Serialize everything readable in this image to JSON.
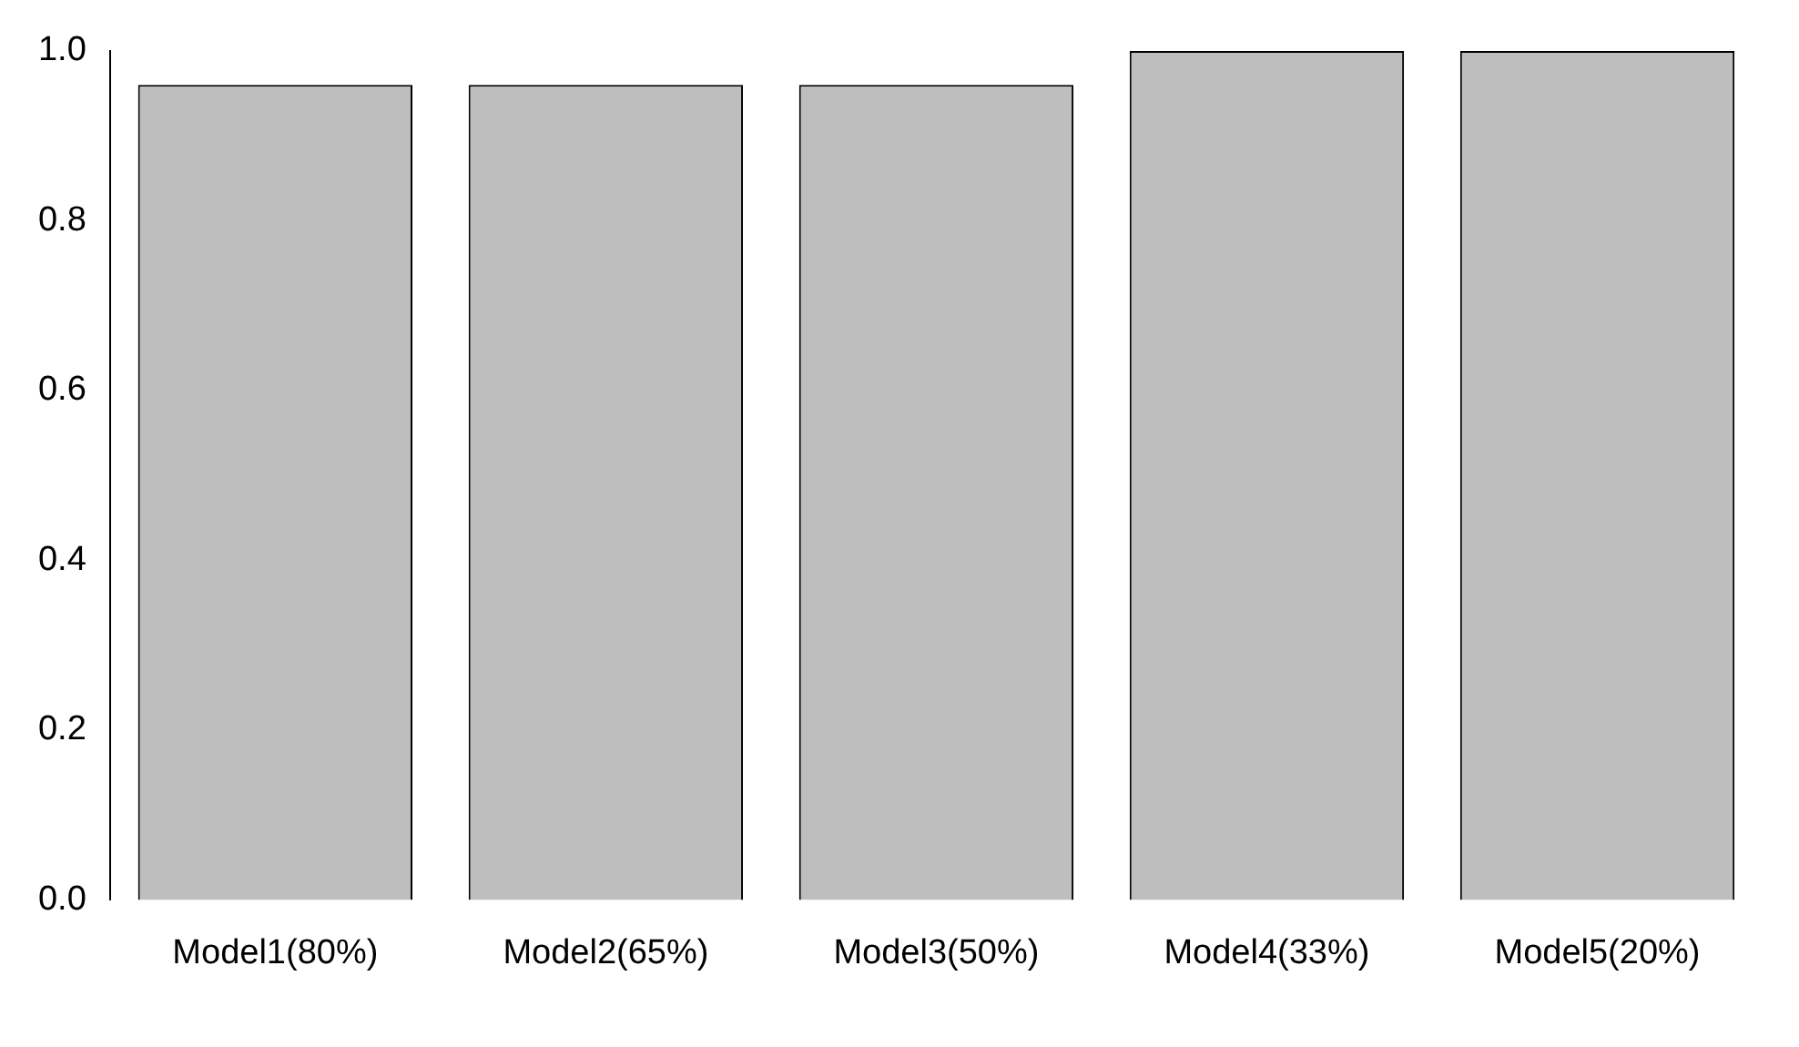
{
  "chart_data": {
    "type": "bar",
    "categories": [
      "Model1(80%)",
      "Model2(65%)",
      "Model3(50%)",
      "Model4(33%)",
      "Model5(20%)"
    ],
    "values": [
      0.96,
      0.96,
      0.96,
      1.0,
      1.0
    ],
    "color": "#bebebe",
    "ylim": [
      0,
      1
    ],
    "yticks": [
      {
        "value": 0,
        "label": "0.0"
      },
      {
        "value": 0.2,
        "label": "0.2"
      },
      {
        "value": 0.4,
        "label": "0.4"
      },
      {
        "value": 0.6,
        "label": "0.6"
      },
      {
        "value": 0.8,
        "label": "0.8"
      },
      {
        "value": 1,
        "label": "1.0"
      }
    ],
    "grid": false,
    "legend": false
  }
}
